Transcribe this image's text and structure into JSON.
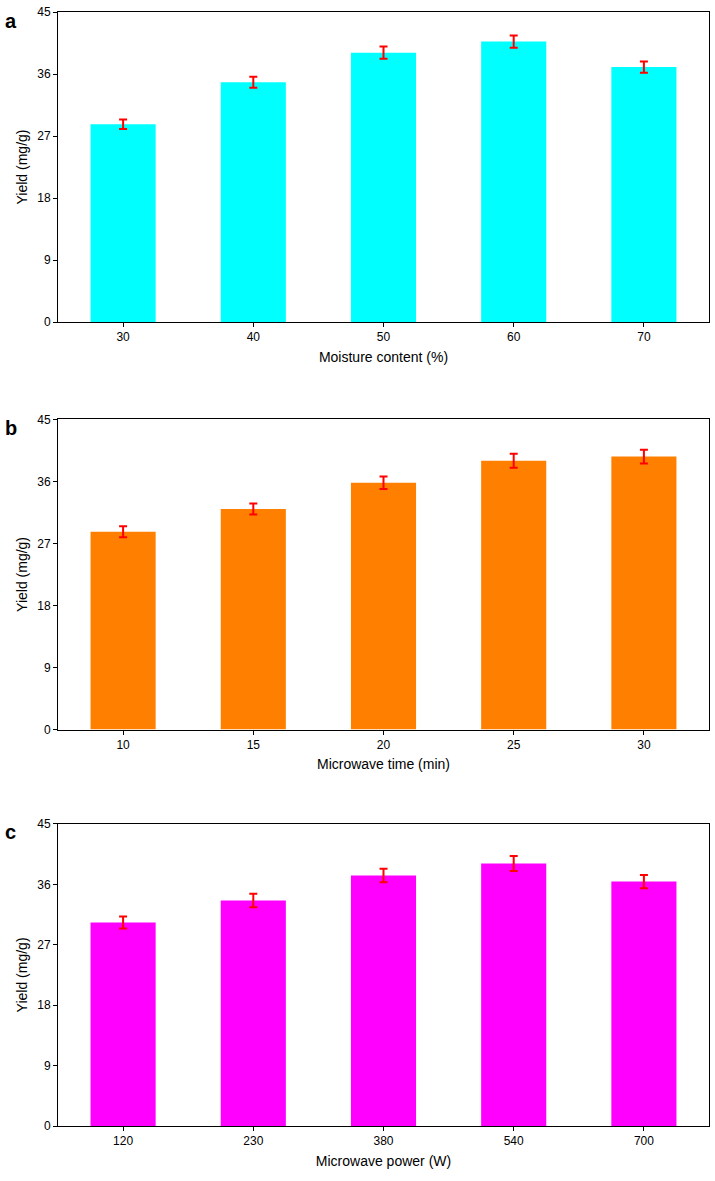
{
  "chart_data": [
    {
      "type": "bar",
      "title": "a",
      "x_label": "Moisture content (%)",
      "y_label": "Yield (mg/g)",
      "categories": [
        "30",
        "40",
        "50",
        "60",
        "70"
      ],
      "values": [
        28.7,
        34.8,
        39.1,
        40.7,
        37.0
      ],
      "errors": [
        0.7,
        0.8,
        0.9,
        0.9,
        0.8
      ],
      "color": "#00FFFF",
      "ylim": [
        0,
        45
      ],
      "yticks": [
        0,
        9,
        18,
        27,
        36,
        45
      ]
    },
    {
      "type": "bar",
      "title": "b",
      "x_label": "Microwave time (min)",
      "y_label": "Yield (mg/g)",
      "categories": [
        "10",
        "15",
        "20",
        "25",
        "30"
      ],
      "values": [
        28.7,
        32.0,
        35.8,
        39.0,
        39.6
      ],
      "errors": [
        0.8,
        0.8,
        0.9,
        1.0,
        1.0
      ],
      "color": "#FF8000",
      "ylim": [
        0,
        45
      ],
      "yticks": [
        0,
        9,
        18,
        27,
        36,
        45
      ]
    },
    {
      "type": "bar",
      "title": "c",
      "x_label": "Microwave power (W)",
      "y_label": "Yield (mg/g)",
      "categories": [
        "120",
        "230",
        "380",
        "540",
        "700"
      ],
      "values": [
        30.3,
        33.6,
        37.3,
        39.1,
        36.4
      ],
      "errors": [
        0.9,
        1.0,
        1.0,
        1.1,
        1.0
      ],
      "color": "#FF00FF",
      "ylim": [
        0,
        45
      ],
      "yticks": [
        0,
        9,
        18,
        27,
        36,
        45
      ]
    }
  ]
}
